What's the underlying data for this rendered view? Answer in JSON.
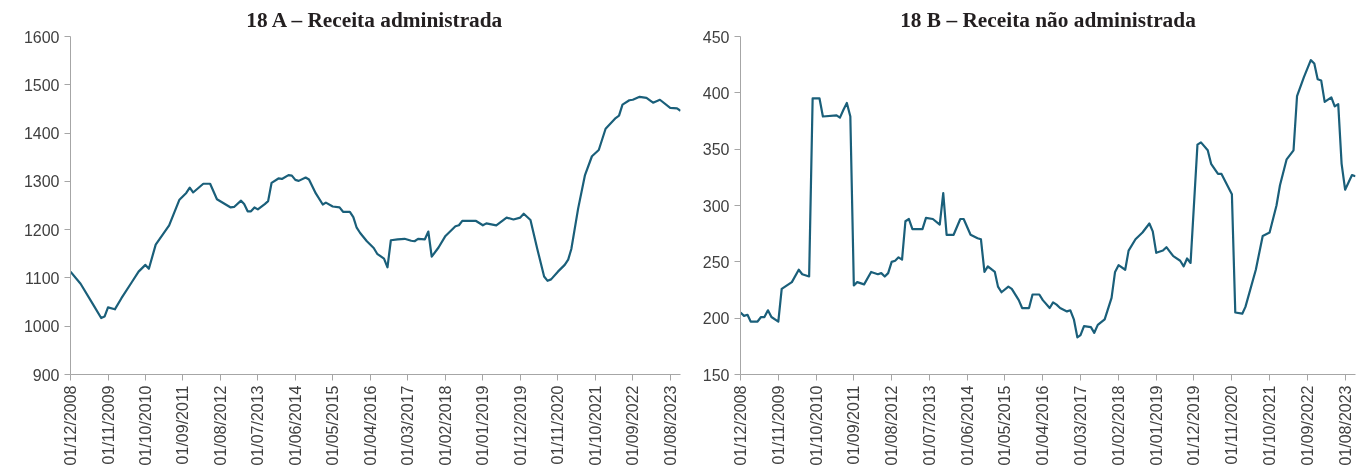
{
  "chart_data": [
    {
      "type": "line",
      "title": "18 A – Receita administrada",
      "x": [
        "2008-12",
        "2009-03",
        "2009-07",
        "2009-09",
        "2009-10",
        "2009-11",
        "2010-01",
        "2010-03",
        "2010-06",
        "2010-08",
        "2010-10",
        "2010-11",
        "2011-01",
        "2011-05",
        "2011-08",
        "2011-10",
        "2011-11",
        "2011-12",
        "2012-03",
        "2012-05",
        "2012-07",
        "2012-11",
        "2012-12",
        "2013-02",
        "2013-03",
        "2013-04",
        "2013-05",
        "2013-06",
        "2013-07",
        "2013-09",
        "2013-10",
        "2013-11",
        "2014-01",
        "2014-02",
        "2014-04",
        "2014-05",
        "2014-06",
        "2014-07",
        "2014-09",
        "2014-10",
        "2014-12",
        "2015-02",
        "2015-03",
        "2015-05",
        "2015-07",
        "2015-08",
        "2015-10",
        "2015-11",
        "2015-12",
        "2016-01",
        "2016-03",
        "2016-05",
        "2016-06",
        "2016-08",
        "2016-09",
        "2016-10",
        "2016-12",
        "2017-02",
        "2017-04",
        "2017-05",
        "2017-06",
        "2017-08",
        "2017-09",
        "2017-10",
        "2017-12",
        "2018-02",
        "2018-05",
        "2018-06",
        "2018-07",
        "2018-11",
        "2019-01",
        "2019-02",
        "2019-05",
        "2019-08",
        "2019-10",
        "2019-12",
        "2020-01",
        "2020-03",
        "2020-05",
        "2020-07",
        "2020-08",
        "2020-09",
        "2020-11",
        "2021-01",
        "2021-02",
        "2021-03",
        "2021-05",
        "2021-07",
        "2021-09",
        "2021-11",
        "2022-01",
        "2022-04",
        "2022-05",
        "2022-06",
        "2022-08",
        "2022-09",
        "2022-11",
        "2023-01",
        "2023-03",
        "2023-05",
        "2023-08",
        "2023-10",
        "2023-11"
      ],
      "series": [
        {
          "color": "#1a5f7a",
          "values": [
            1113,
            1088,
            1041,
            1017,
            1020,
            1039,
            1035,
            1058,
            1091,
            1113,
            1127,
            1119,
            1169,
            1209,
            1262,
            1276,
            1287,
            1277,
            1295,
            1295,
            1263,
            1246,
            1247,
            1260,
            1253,
            1238,
            1238,
            1246,
            1242,
            1253,
            1259,
            1297,
            1306,
            1305,
            1313,
            1312,
            1303,
            1301,
            1308,
            1304,
            1275,
            1252,
            1256,
            1248,
            1246,
            1237,
            1237,
            1226,
            1204,
            1193,
            1176,
            1162,
            1150,
            1140,
            1122,
            1178,
            1180,
            1181,
            1177,
            1176,
            1181,
            1180,
            1196,
            1144,
            1163,
            1187,
            1207,
            1209,
            1218,
            1218,
            1209,
            1213,
            1209,
            1225,
            1221,
            1225,
            1233,
            1220,
            1160,
            1103,
            1094,
            1097,
            1113,
            1127,
            1138,
            1160,
            1244,
            1313,
            1352,
            1365,
            1409,
            1431,
            1436,
            1459,
            1468,
            1469,
            1475,
            1473,
            1463,
            1469,
            1452,
            1451,
            1446
          ]
        }
      ],
      "xlim": [
        "2008-12",
        "2023-11"
      ],
      "xticks": [
        {
          "value": "2008-12",
          "label": "01/12/2008"
        },
        {
          "value": "2009-11",
          "label": "01/11/2009"
        },
        {
          "value": "2010-10",
          "label": "01/10/2010"
        },
        {
          "value": "2011-09",
          "label": "01/09/2011"
        },
        {
          "value": "2012-08",
          "label": "01/08/2012"
        },
        {
          "value": "2013-07",
          "label": "01/07/2013"
        },
        {
          "value": "2014-06",
          "label": "01/06/2014"
        },
        {
          "value": "2015-05",
          "label": "01/05/2015"
        },
        {
          "value": "2016-04",
          "label": "01/04/2016"
        },
        {
          "value": "2017-03",
          "label": "01/03/2017"
        },
        {
          "value": "2018-02",
          "label": "01/02/2018"
        },
        {
          "value": "2019-01",
          "label": "01/01/2019"
        },
        {
          "value": "2019-12",
          "label": "01/12/2019"
        },
        {
          "value": "2020-11",
          "label": "01/11/2020"
        },
        {
          "value": "2021-10",
          "label": "01/10/2021"
        },
        {
          "value": "2022-09",
          "label": "01/09/2022"
        },
        {
          "value": "2023-08",
          "label": "01/08/2023"
        }
      ],
      "ylim": [
        900,
        1600
      ],
      "yticks": [
        900,
        1000,
        1100,
        1200,
        1300,
        1400,
        1500,
        1600
      ],
      "grid": false,
      "line_style": "solid"
    },
    {
      "type": "line",
      "title": "18 B – Receita não administrada",
      "x": [
        "2008-12",
        "2009-01",
        "2009-02",
        "2009-03",
        "2009-05",
        "2009-06",
        "2009-07",
        "2009-08",
        "2009-09",
        "2009-11",
        "2009-12",
        "2010-03",
        "2010-05",
        "2010-06",
        "2010-08",
        "2010-09",
        "2010-11",
        "2010-12",
        "2011-04",
        "2011-05",
        "2011-06",
        "2011-07",
        "2011-08",
        "2011-09",
        "2011-10",
        "2011-12",
        "2012-02",
        "2012-04",
        "2012-05",
        "2012-06",
        "2012-07",
        "2012-08",
        "2012-09",
        "2012-10",
        "2012-11",
        "2012-12",
        "2013-01",
        "2013-02",
        "2013-04",
        "2013-05",
        "2013-06",
        "2013-08",
        "2013-10",
        "2013-11",
        "2013-12",
        "2014-02",
        "2014-04",
        "2014-05",
        "2014-07",
        "2014-09",
        "2014-10",
        "2014-11",
        "2014-12",
        "2015-02",
        "2015-03",
        "2015-04",
        "2015-06",
        "2015-07",
        "2015-09",
        "2015-10",
        "2015-12",
        "2016-01",
        "2016-03",
        "2016-04",
        "2016-06",
        "2016-07",
        "2016-08",
        "2016-09",
        "2016-11",
        "2016-12",
        "2017-01",
        "2017-02",
        "2017-03",
        "2017-04",
        "2017-06",
        "2017-07",
        "2017-08",
        "2017-10",
        "2017-12",
        "2018-01",
        "2018-02",
        "2018-04",
        "2018-05",
        "2018-07",
        "2018-09",
        "2018-11",
        "2018-12",
        "2019-01",
        "2019-03",
        "2019-04",
        "2019-05",
        "2019-06",
        "2019-08",
        "2019-09",
        "2019-10",
        "2019-11",
        "2020-01",
        "2020-02",
        "2020-04",
        "2020-05",
        "2020-07",
        "2020-08",
        "2020-11",
        "2020-12",
        "2021-02",
        "2021-03",
        "2021-06",
        "2021-08",
        "2021-10",
        "2021-12",
        "2022-01",
        "2022-03",
        "2022-05",
        "2022-06",
        "2022-08",
        "2022-10",
        "2022-11",
        "2022-12",
        "2023-01",
        "2023-02",
        "2023-04",
        "2023-05",
        "2023-06",
        "2023-07",
        "2023-08",
        "2023-10",
        "2023-11"
      ],
      "series": [
        {
          "color": "#1a5f7a",
          "values": [
            205,
            202,
            203,
            197,
            197,
            201,
            201,
            207,
            201,
            197,
            226,
            232,
            243,
            239,
            237,
            395,
            395,
            379,
            380,
            378,
            385,
            391,
            379,
            229,
            232,
            230,
            241,
            239,
            240,
            237,
            240,
            250,
            251,
            254,
            252,
            286,
            288,
            279,
            279,
            279,
            289,
            288,
            283,
            311,
            274,
            274,
            288,
            288,
            274,
            271,
            270,
            241,
            246,
            241,
            228,
            223,
            228,
            226,
            216,
            209,
            209,
            221,
            221,
            216,
            209,
            214,
            212,
            209,
            206,
            207,
            199,
            183,
            185,
            193,
            192,
            187,
            194,
            199,
            218,
            241,
            247,
            243,
            260,
            270,
            276,
            284,
            277,
            258,
            260,
            263,
            259,
            255,
            251,
            246,
            253,
            249,
            354,
            356,
            349,
            337,
            328,
            328,
            310,
            205,
            204,
            210,
            243,
            273,
            276,
            300,
            318,
            341,
            349,
            397,
            414,
            429,
            426,
            412,
            411,
            392,
            396,
            388,
            390,
            337,
            314,
            327,
            326
          ]
        }
      ],
      "xlim": [
        "2008-12",
        "2023-11"
      ],
      "xticks": [
        {
          "value": "2008-12",
          "label": "01/12/2008"
        },
        {
          "value": "2009-11",
          "label": "01/11/2009"
        },
        {
          "value": "2010-10",
          "label": "01/10/2010"
        },
        {
          "value": "2011-09",
          "label": "01/09/2011"
        },
        {
          "value": "2012-08",
          "label": "01/08/2012"
        },
        {
          "value": "2013-07",
          "label": "01/07/2013"
        },
        {
          "value": "2014-06",
          "label": "01/06/2014"
        },
        {
          "value": "2015-05",
          "label": "01/05/2015"
        },
        {
          "value": "2016-04",
          "label": "01/04/2016"
        },
        {
          "value": "2017-03",
          "label": "01/03/2017"
        },
        {
          "value": "2018-02",
          "label": "01/02/2018"
        },
        {
          "value": "2019-01",
          "label": "01/01/2019"
        },
        {
          "value": "2019-12",
          "label": "01/12/2019"
        },
        {
          "value": "2020-11",
          "label": "01/11/2020"
        },
        {
          "value": "2021-10",
          "label": "01/10/2021"
        },
        {
          "value": "2022-09",
          "label": "01/09/2022"
        },
        {
          "value": "2023-08",
          "label": "01/08/2023"
        }
      ],
      "ylim": [
        150,
        450
      ],
      "yticks": [
        150,
        200,
        250,
        300,
        350,
        400,
        450
      ],
      "grid": false,
      "line_style": "solid"
    }
  ]
}
